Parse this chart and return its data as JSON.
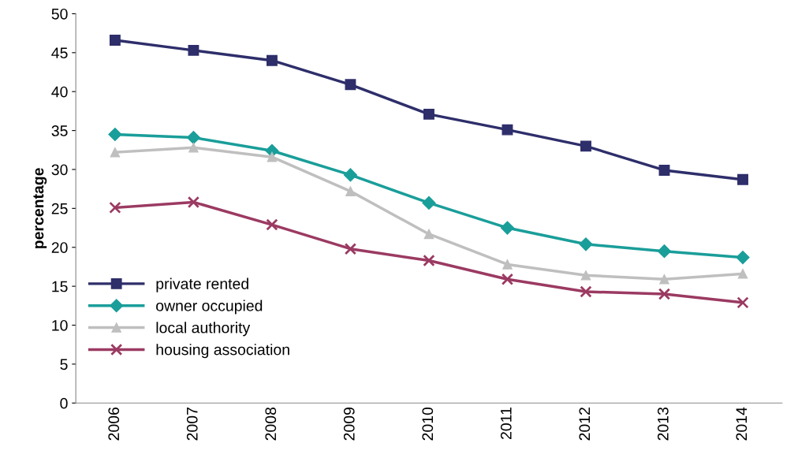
{
  "chart_data": {
    "type": "line",
    "ylabel": "percentage",
    "categories": [
      "2006",
      "2007",
      "2008",
      "2009",
      "2010",
      "2011",
      "2012",
      "2013",
      "2014"
    ],
    "ylim": [
      0,
      50
    ],
    "yticks": [
      0,
      5,
      10,
      15,
      20,
      25,
      30,
      35,
      40,
      45,
      50
    ],
    "grid": false,
    "legend": "bottom left",
    "line_style": "solid",
    "series": [
      {
        "name": "private rented",
        "color": "#2e2e6b",
        "marker": "square",
        "values": [
          46.6,
          45.3,
          44.0,
          40.9,
          37.1,
          35.1,
          33.0,
          29.9,
          28.7
        ]
      },
      {
        "name": "owner occupied",
        "color": "#1a9e9a",
        "marker": "diamond",
        "values": [
          34.5,
          34.1,
          32.4,
          29.3,
          25.7,
          22.5,
          20.4,
          19.5,
          18.7
        ]
      },
      {
        "name": "local authority",
        "color": "#bfbfbf",
        "marker": "triangle",
        "values": [
          32.2,
          32.8,
          31.6,
          27.2,
          21.7,
          17.8,
          16.4,
          15.9,
          16.6
        ]
      },
      {
        "name": "housing association",
        "color": "#9b3a62",
        "marker": "cross",
        "values": [
          25.1,
          25.8,
          22.9,
          19.8,
          18.3,
          15.9,
          14.3,
          14.0,
          12.9
        ]
      }
    ]
  }
}
